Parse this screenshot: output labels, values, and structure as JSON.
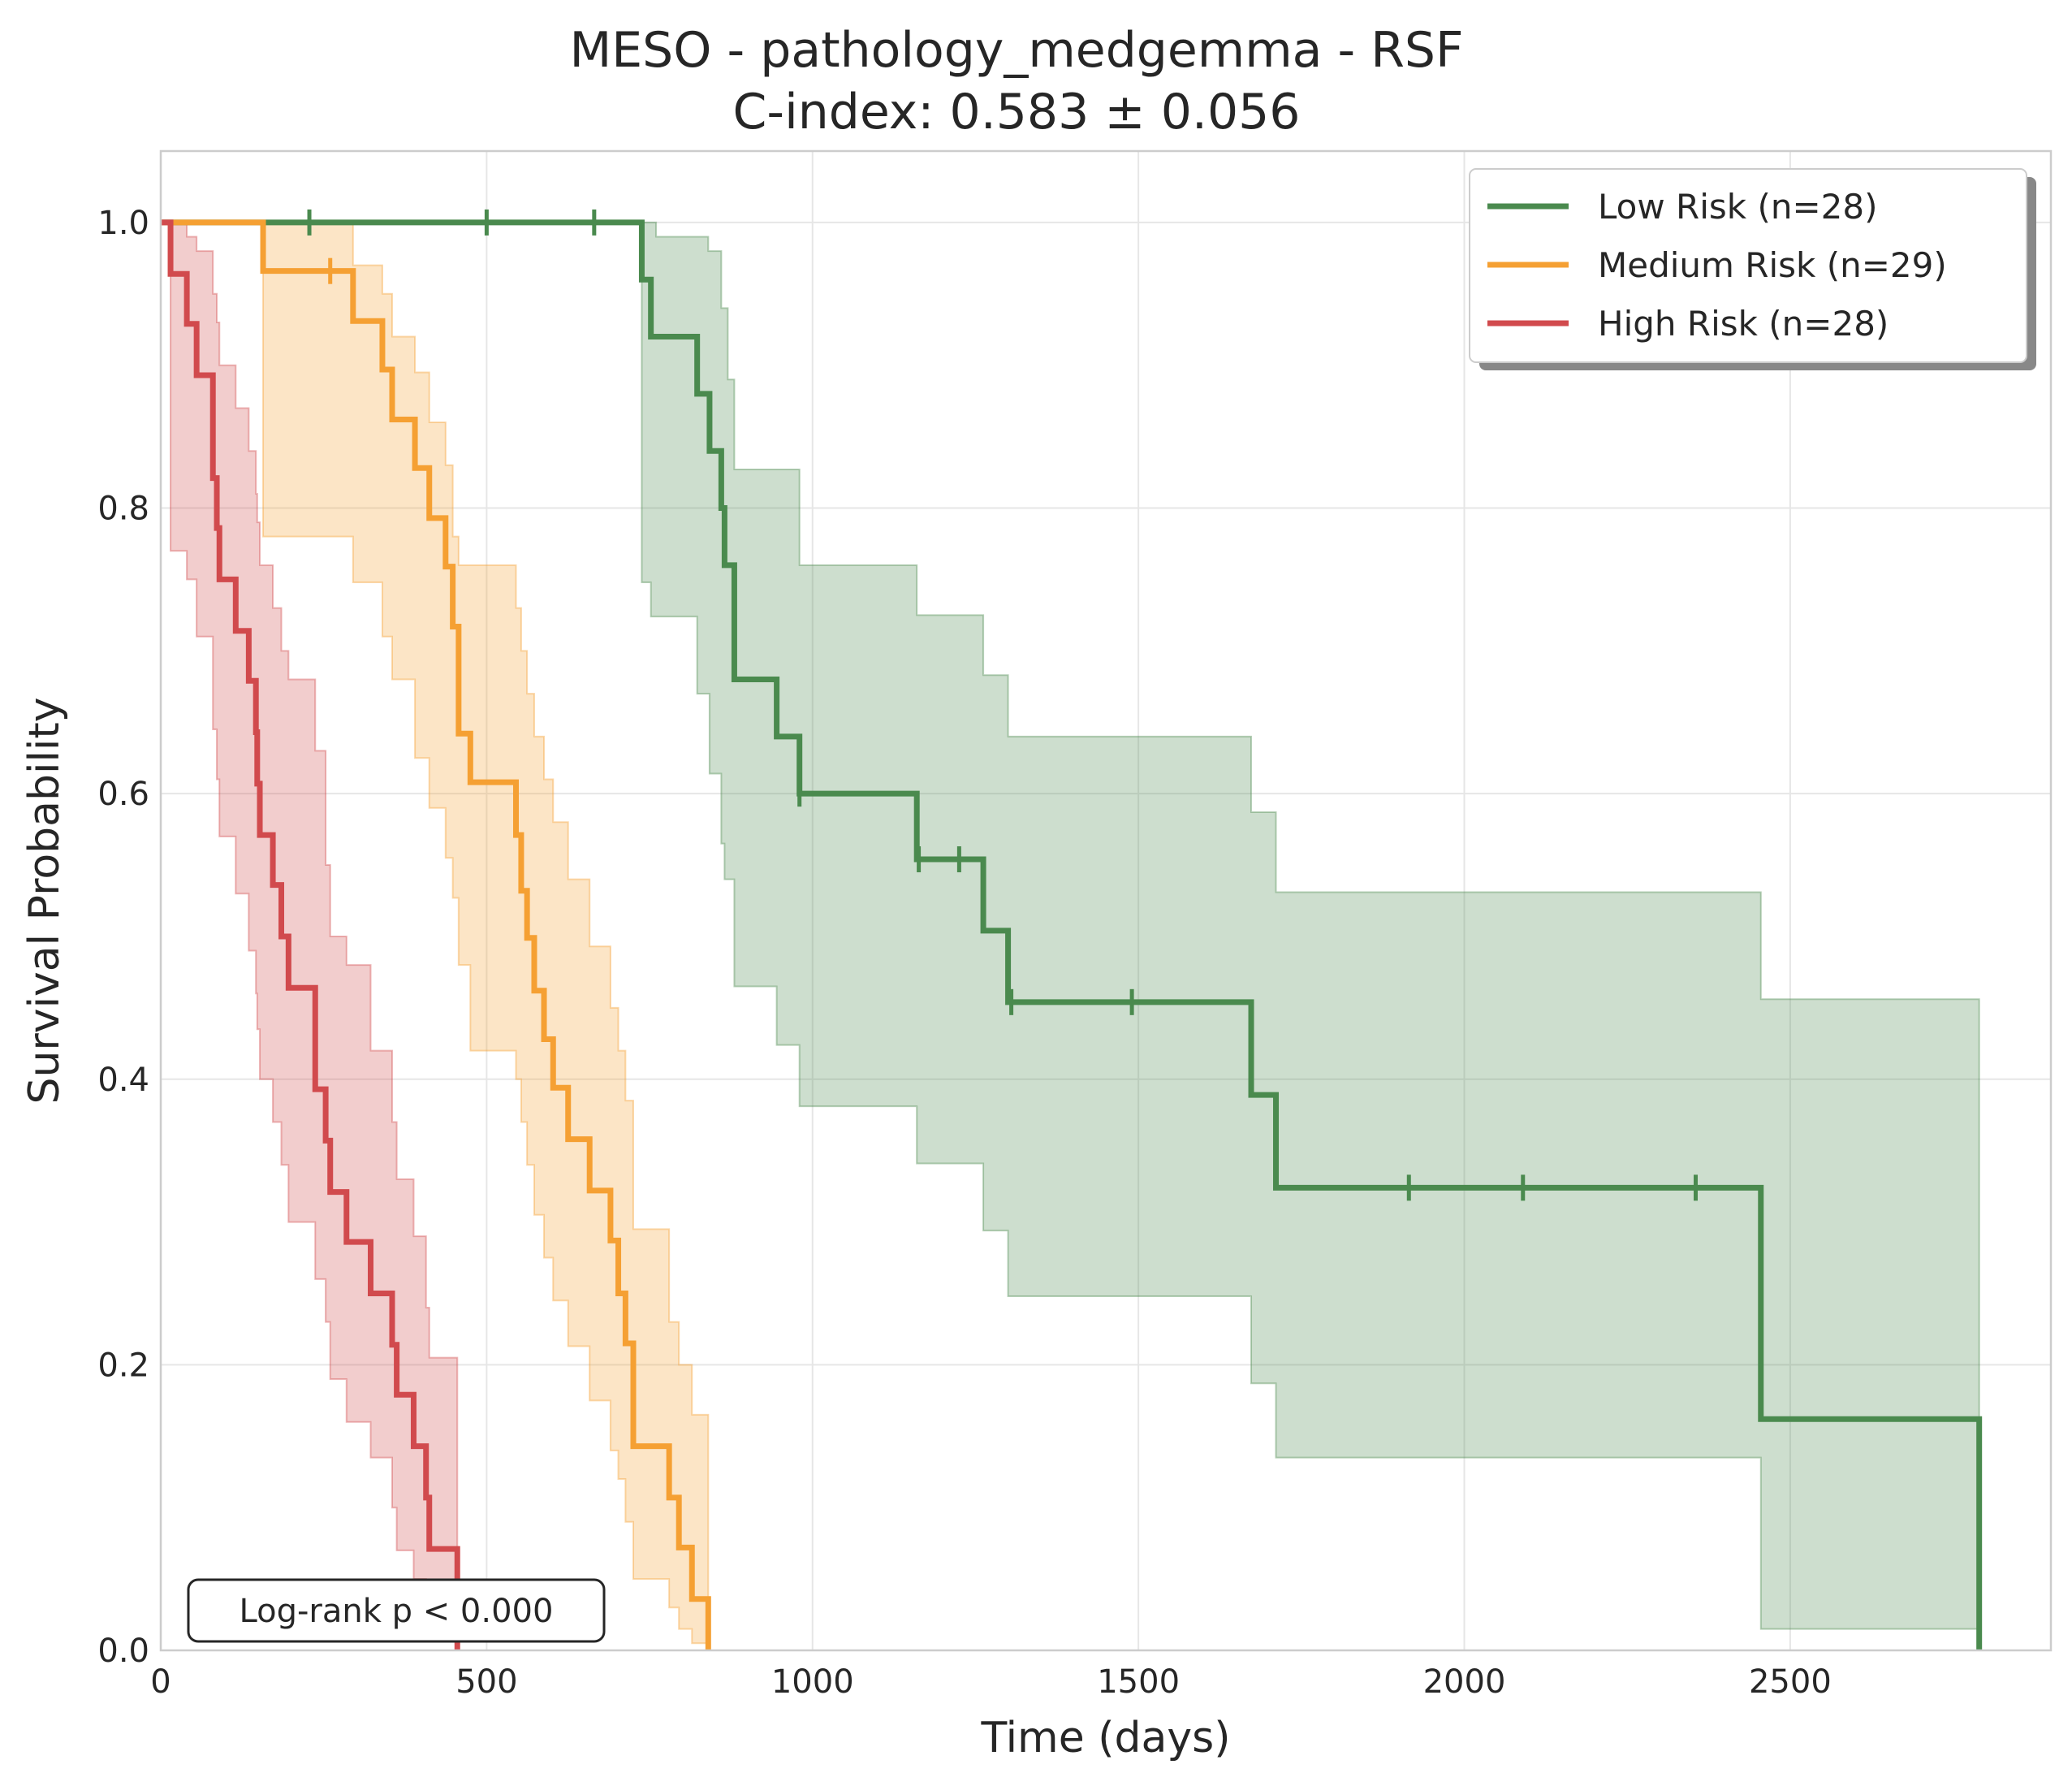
{
  "chart_data": {
    "type": "line",
    "title_line1": "MESO - pathology_medgemma - RSF",
    "title_line2": "C-index: 0.583 ± 0.056",
    "xlabel": "Time (days)",
    "ylabel": "Survival Probability",
    "xlim": [
      0,
      2900
    ],
    "ylim": [
      0,
      1.05
    ],
    "xticks": [
      0,
      500,
      1000,
      1500,
      2000,
      2500
    ],
    "yticks": [
      0.0,
      0.2,
      0.4,
      0.6,
      0.8,
      1.0
    ],
    "xtick_labels": [
      "0",
      "500",
      "1000",
      "1500",
      "2000",
      "2500"
    ],
    "ytick_labels": [
      "0.0",
      "0.2",
      "0.4",
      "0.6",
      "0.8",
      "1.0"
    ],
    "grid": true,
    "legend_position": "top-right",
    "annotation": "Log-rank p < 0.000",
    "series": [
      {
        "name": "Low Risk (n=28)",
        "color": "#4a8a4e",
        "steps": [
          [
            0,
            1.0
          ],
          [
            738,
            0.96
          ],
          [
            752,
            0.92
          ],
          [
            823,
            0.88
          ],
          [
            842,
            0.84
          ],
          [
            860,
            0.8
          ],
          [
            865,
            0.76
          ],
          [
            880,
            0.68
          ],
          [
            945,
            0.64
          ],
          [
            980,
            0.6
          ],
          [
            1160,
            0.554
          ],
          [
            1262,
            0.504
          ],
          [
            1300,
            0.454
          ],
          [
            1673,
            0.389
          ],
          [
            1711,
            0.324
          ],
          [
            2455,
            0.162
          ],
          [
            2790,
            0.0
          ]
        ],
        "end_x": 2790,
        "ci_upper": [
          [
            0,
            1.0
          ],
          [
            738,
            1.0
          ],
          [
            760,
            0.99
          ],
          [
            840,
            0.98
          ],
          [
            860,
            0.94
          ],
          [
            870,
            0.89
          ],
          [
            880,
            0.827
          ],
          [
            945,
            0.827
          ],
          [
            980,
            0.76
          ],
          [
            1160,
            0.725
          ],
          [
            1262,
            0.683
          ],
          [
            1300,
            0.64
          ],
          [
            1673,
            0.587
          ],
          [
            1711,
            0.531
          ],
          [
            2455,
            0.456
          ],
          [
            2790,
            0.456
          ]
        ],
        "ci_lower": [
          [
            0,
            1.0
          ],
          [
            738,
            0.748
          ],
          [
            752,
            0.724
          ],
          [
            823,
            0.67
          ],
          [
            842,
            0.614
          ],
          [
            860,
            0.565
          ],
          [
            865,
            0.54
          ],
          [
            880,
            0.465
          ],
          [
            945,
            0.424
          ],
          [
            980,
            0.381
          ],
          [
            1160,
            0.341
          ],
          [
            1262,
            0.294
          ],
          [
            1300,
            0.248
          ],
          [
            1673,
            0.187
          ],
          [
            1711,
            0.135
          ],
          [
            2455,
            0.015
          ],
          [
            2790,
            0.015
          ]
        ],
        "censor_times": [
          228,
          500,
          665,
          980,
          1163,
          1225,
          1305,
          1490,
          1915,
          2090,
          2355
        ]
      },
      {
        "name": "Medium Risk (n=29)",
        "color": "#f5a033",
        "steps": [
          [
            0,
            1.0
          ],
          [
            157,
            0.966
          ],
          [
            295,
            0.931
          ],
          [
            340,
            0.897
          ],
          [
            355,
            0.862
          ],
          [
            390,
            0.828
          ],
          [
            412,
            0.793
          ],
          [
            437,
            0.759
          ],
          [
            448,
            0.717
          ],
          [
            457,
            0.642
          ],
          [
            475,
            0.608
          ],
          [
            545,
            0.571
          ],
          [
            553,
            0.532
          ],
          [
            562,
            0.499
          ],
          [
            573,
            0.462
          ],
          [
            588,
            0.428
          ],
          [
            602,
            0.394
          ],
          [
            625,
            0.358
          ],
          [
            658,
            0.322
          ],
          [
            690,
            0.287
          ],
          [
            702,
            0.25
          ],
          [
            713,
            0.215
          ],
          [
            725,
            0.143
          ],
          [
            780,
            0.107
          ],
          [
            795,
            0.072
          ],
          [
            815,
            0.036
          ],
          [
            840,
            0.0
          ]
        ],
        "end_x": 840,
        "ci_upper": [
          [
            0,
            1.0
          ],
          [
            157,
            1.0
          ],
          [
            295,
            0.97
          ],
          [
            340,
            0.95
          ],
          [
            355,
            0.92
          ],
          [
            390,
            0.895
          ],
          [
            412,
            0.86
          ],
          [
            437,
            0.83
          ],
          [
            448,
            0.78
          ],
          [
            457,
            0.76
          ],
          [
            475,
            0.76
          ],
          [
            545,
            0.73
          ],
          [
            553,
            0.7
          ],
          [
            562,
            0.67
          ],
          [
            573,
            0.64
          ],
          [
            588,
            0.61
          ],
          [
            602,
            0.58
          ],
          [
            625,
            0.54
          ],
          [
            658,
            0.493
          ],
          [
            690,
            0.45
          ],
          [
            702,
            0.42
          ],
          [
            713,
            0.385
          ],
          [
            725,
            0.295
          ],
          [
            780,
            0.23
          ],
          [
            795,
            0.2
          ],
          [
            815,
            0.165
          ],
          [
            840,
            0.165
          ]
        ],
        "ci_lower": [
          [
            0,
            1.0
          ],
          [
            157,
            0.78
          ],
          [
            295,
            0.748
          ],
          [
            340,
            0.71
          ],
          [
            355,
            0.68
          ],
          [
            390,
            0.625
          ],
          [
            412,
            0.59
          ],
          [
            437,
            0.555
          ],
          [
            448,
            0.527
          ],
          [
            457,
            0.48
          ],
          [
            475,
            0.42
          ],
          [
            545,
            0.4
          ],
          [
            553,
            0.37
          ],
          [
            562,
            0.34
          ],
          [
            573,
            0.305
          ],
          [
            588,
            0.275
          ],
          [
            602,
            0.245
          ],
          [
            625,
            0.213
          ],
          [
            658,
            0.175
          ],
          [
            690,
            0.14
          ],
          [
            702,
            0.12
          ],
          [
            713,
            0.09
          ],
          [
            725,
            0.05
          ],
          [
            780,
            0.03
          ],
          [
            795,
            0.015
          ],
          [
            815,
            0.005
          ],
          [
            840,
            0.0
          ]
        ],
        "censor_times": [
          260
        ]
      },
      {
        "name": "High Risk (n=28)",
        "color": "#d14a4d",
        "steps": [
          [
            0,
            1.0
          ],
          [
            15,
            0.964
          ],
          [
            40,
            0.929
          ],
          [
            55,
            0.893
          ],
          [
            80,
            0.821
          ],
          [
            86,
            0.786
          ],
          [
            90,
            0.75
          ],
          [
            115,
            0.714
          ],
          [
            135,
            0.679
          ],
          [
            146,
            0.643
          ],
          [
            148,
            0.607
          ],
          [
            152,
            0.571
          ],
          [
            172,
            0.536
          ],
          [
            185,
            0.5
          ],
          [
            196,
            0.464
          ],
          [
            237,
            0.393
          ],
          [
            253,
            0.357
          ],
          [
            260,
            0.321
          ],
          [
            285,
            0.286
          ],
          [
            322,
            0.25
          ],
          [
            355,
            0.214
          ],
          [
            362,
            0.179
          ],
          [
            388,
            0.143
          ],
          [
            407,
            0.107
          ],
          [
            412,
            0.071
          ],
          [
            455,
            0.0
          ]
        ],
        "end_x": 455,
        "ci_upper": [
          [
            0,
            1.0
          ],
          [
            15,
            1.0
          ],
          [
            40,
            0.99
          ],
          [
            55,
            0.98
          ],
          [
            80,
            0.95
          ],
          [
            86,
            0.93
          ],
          [
            90,
            0.9
          ],
          [
            115,
            0.87
          ],
          [
            135,
            0.84
          ],
          [
            146,
            0.81
          ],
          [
            148,
            0.79
          ],
          [
            152,
            0.76
          ],
          [
            172,
            0.73
          ],
          [
            185,
            0.7
          ],
          [
            196,
            0.68
          ],
          [
            237,
            0.63
          ],
          [
            253,
            0.55
          ],
          [
            260,
            0.5
          ],
          [
            285,
            0.48
          ],
          [
            322,
            0.42
          ],
          [
            355,
            0.37
          ],
          [
            362,
            0.33
          ],
          [
            388,
            0.29
          ],
          [
            407,
            0.24
          ],
          [
            412,
            0.205
          ],
          [
            455,
            0.205
          ]
        ],
        "ci_lower": [
          [
            0,
            1.0
          ],
          [
            15,
            0.77
          ],
          [
            40,
            0.75
          ],
          [
            55,
            0.71
          ],
          [
            80,
            0.645
          ],
          [
            86,
            0.61
          ],
          [
            90,
            0.57
          ],
          [
            115,
            0.53
          ],
          [
            135,
            0.49
          ],
          [
            146,
            0.46
          ],
          [
            148,
            0.435
          ],
          [
            152,
            0.4
          ],
          [
            172,
            0.37
          ],
          [
            185,
            0.34
          ],
          [
            196,
            0.3
          ],
          [
            237,
            0.26
          ],
          [
            253,
            0.23
          ],
          [
            260,
            0.19
          ],
          [
            285,
            0.16
          ],
          [
            322,
            0.135
          ],
          [
            355,
            0.1
          ],
          [
            362,
            0.07
          ],
          [
            388,
            0.05
          ],
          [
            407,
            0.03
          ],
          [
            412,
            0.01
          ],
          [
            455,
            0.0
          ]
        ],
        "censor_times": []
      }
    ]
  }
}
